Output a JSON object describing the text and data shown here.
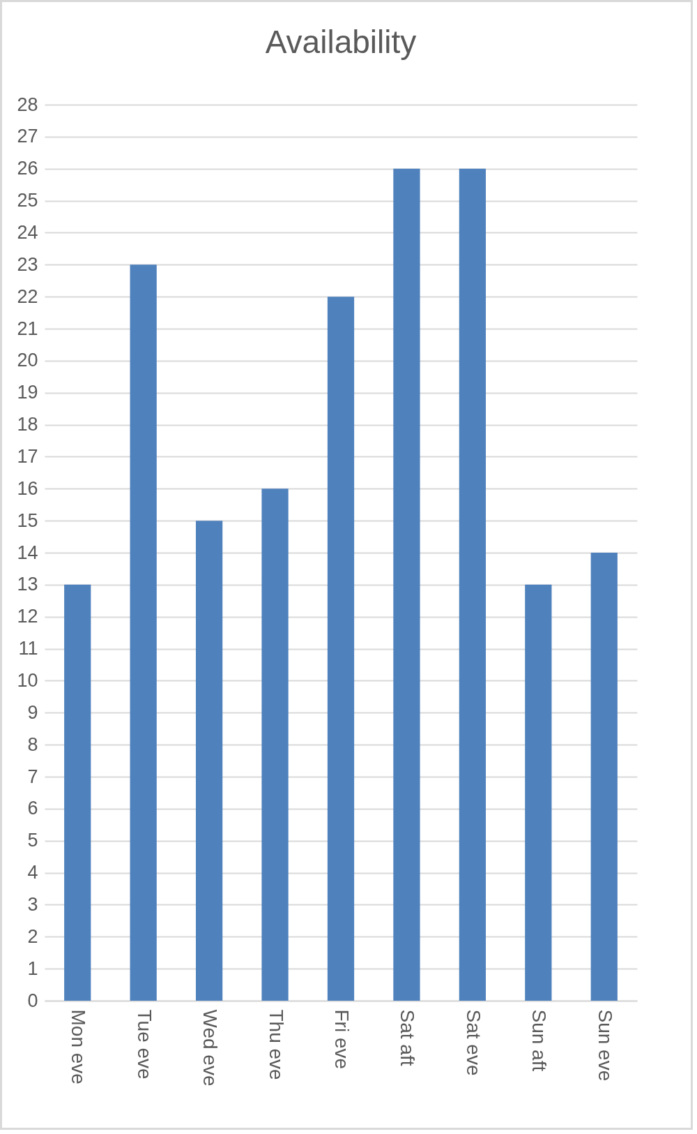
{
  "chart_data": {
    "type": "bar",
    "title": "Availability",
    "categories": [
      "Mon eve",
      "Tue eve",
      "Wed eve",
      "Thu eve",
      "Fri eve",
      "Sat aft",
      "Sat eve",
      "Sun aft",
      "Sun eve"
    ],
    "values": [
      13,
      23,
      15,
      16,
      22,
      26,
      26,
      13,
      14
    ],
    "color": "#4f81bd",
    "ylim": [
      0,
      28
    ],
    "yticks": [
      0,
      1,
      2,
      3,
      4,
      5,
      6,
      7,
      8,
      9,
      10,
      11,
      12,
      13,
      14,
      15,
      16,
      17,
      18,
      19,
      20,
      21,
      22,
      23,
      24,
      25,
      26,
      27,
      28
    ],
    "grid": "y"
  }
}
